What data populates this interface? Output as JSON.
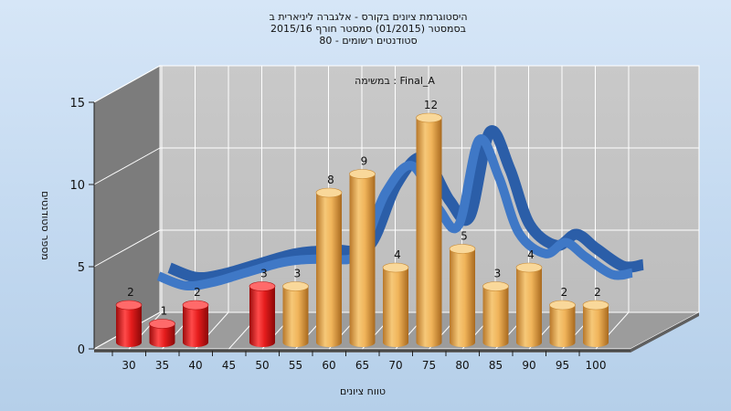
{
  "chart_data": {
    "type": "bar",
    "title_lines": [
      "היסטוגרמת ציונים בקורס - אלגברה ליניארית ב",
      "בסמסטר  (01/2015)  סמסטר חורף 2015/16",
      "סטודנטים רשומים - 80"
    ],
    "subtitle": "במשימה : Final_A",
    "xlabel": "טווח ציונים",
    "ylabel": "מספר סטודנטים",
    "ylim": [
      0,
      15
    ],
    "yticks": [
      "0",
      "5",
      "10",
      "15"
    ],
    "categories": [
      "30",
      "35",
      "40",
      "45",
      "50",
      "55",
      "60",
      "65",
      "70",
      "75",
      "80",
      "85",
      "90",
      "95",
      "100"
    ],
    "bars": [
      {
        "x": 30,
        "value": 2,
        "label": "2"
      },
      {
        "x": 35,
        "value": 1,
        "label": "1"
      },
      {
        "x": 40,
        "value": 2,
        "label": "2"
      },
      {
        "x": 50,
        "value": 3,
        "label": "3"
      },
      {
        "x": 55,
        "value": 3,
        "label": "3"
      },
      {
        "x": 60,
        "value": 8,
        "label": "8"
      },
      {
        "x": 65,
        "value": 9,
        "label": "9"
      },
      {
        "x": 70,
        "value": 4,
        "label": "4"
      },
      {
        "x": 75,
        "value": 12,
        "label": "12"
      },
      {
        "x": 80,
        "value": 5,
        "label": "5"
      },
      {
        "x": 85,
        "value": 3,
        "label": "3"
      },
      {
        "x": 90,
        "value": 4,
        "label": "4"
      },
      {
        "x": 95,
        "value": 2,
        "label": "2"
      },
      {
        "x": 100,
        "value": 2,
        "label": "2"
      }
    ],
    "failing_threshold": 55,
    "curve": {
      "x": [
        32,
        36,
        40,
        45,
        50,
        53,
        57,
        62,
        66,
        70,
        74,
        77,
        80,
        83,
        86,
        90,
        93,
        96,
        100,
        103
      ],
      "y": [
        3.3,
        2.7,
        2.9,
        3.5,
        4.1,
        4.3,
        4.4,
        4.7,
        8.5,
        10.2,
        7.5,
        6.5,
        11.8,
        9.5,
        6.0,
        4.7,
        5.4,
        4.5,
        3.4,
        3.5
      ]
    },
    "colors": {
      "fail_bar": "#e01818",
      "pass_bar": "#e8a94a",
      "curve": "#3f78c6",
      "plot_back": "#c4c4c4",
      "left_wall": "#7a7a7a",
      "floor": "#9a9a9a"
    },
    "grid": true,
    "legend": "none"
  }
}
